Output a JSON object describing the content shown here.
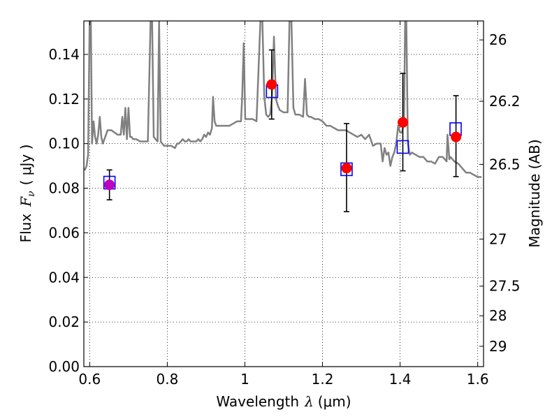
{
  "chart_data": {
    "type": "scatter",
    "xlabel": "Wavelength",
    "xlabel_symbol": "λ",
    "xlabel_unit": "(μm)",
    "ylabel": "Flux",
    "ylabel_symbol": "F",
    "ylabel_subscript": "ν",
    "ylabel_unit": "( μJy )",
    "y2label": "Magnitude (AB)",
    "xlim": [
      0.585,
      1.615
    ],
    "ylim": [
      0.0,
      0.155
    ],
    "grid": true,
    "x_ticks": [
      0.6,
      0.8,
      1.0,
      1.2,
      1.4,
      1.6
    ],
    "x_tick_labels": [
      "0.6",
      "0.8",
      "1",
      "1.2",
      "1.4",
      "1.6"
    ],
    "y_ticks": [
      0.0,
      0.02,
      0.04,
      0.06,
      0.08,
      0.1,
      0.12,
      0.14
    ],
    "y_tick_labels": [
      "0.00",
      "0.02",
      "0.04",
      "0.06",
      "0.08",
      "0.10",
      "0.12",
      "0.14"
    ],
    "y2_ticks": [
      {
        "label": "26",
        "flux": 0.1465
      },
      {
        "label": "26.2",
        "flux": 0.119
      },
      {
        "label": "26.5",
        "flux": 0.0907
      },
      {
        "label": "27",
        "flux": 0.0572
      },
      {
        "label": "27.5",
        "flux": 0.0361
      },
      {
        "label": "28",
        "flux": 0.0228
      },
      {
        "label": "29",
        "flux": 0.0091
      }
    ],
    "series": [
      {
        "marker": "line",
        "color": "#808080",
        "x": [
          0.587,
          0.592,
          0.596,
          0.6,
          0.603,
          0.606,
          0.61,
          0.614,
          0.618,
          0.622,
          0.626,
          0.63,
          0.634,
          0.638,
          0.642,
          0.646,
          0.65,
          0.656,
          0.664,
          0.672,
          0.68,
          0.684,
          0.688,
          0.692,
          0.696,
          0.7,
          0.704,
          0.708,
          0.712,
          0.72,
          0.73,
          0.74,
          0.75,
          0.757,
          0.761,
          0.765,
          0.77,
          0.775,
          0.779,
          0.783,
          0.787,
          0.792,
          0.8,
          0.81,
          0.82,
          0.825,
          0.83,
          0.835,
          0.84,
          0.845,
          0.85,
          0.855,
          0.86,
          0.865,
          0.87,
          0.875,
          0.88,
          0.885,
          0.89,
          0.895,
          0.9,
          0.905,
          0.91,
          0.915,
          0.918,
          0.922,
          0.926,
          0.93,
          0.94,
          0.95,
          0.96,
          0.97,
          0.98,
          0.99,
          0.993,
          0.997,
          1.001,
          1.01,
          1.02,
          1.03,
          1.04,
          1.045,
          1.05,
          1.055,
          1.06,
          1.065,
          1.07,
          1.075,
          1.08,
          1.085,
          1.09,
          1.1,
          1.11,
          1.115,
          1.12,
          1.125,
          1.13,
          1.14,
          1.15,
          1.155,
          1.16,
          1.165,
          1.17,
          1.18,
          1.19,
          1.2,
          1.21,
          1.22,
          1.23,
          1.24,
          1.25,
          1.26,
          1.27,
          1.28,
          1.29,
          1.3,
          1.31,
          1.32,
          1.33,
          1.34,
          1.35,
          1.355,
          1.36,
          1.365,
          1.37,
          1.375,
          1.38,
          1.385,
          1.39,
          1.395,
          1.4,
          1.405,
          1.41,
          1.413,
          1.416,
          1.42,
          1.425,
          1.43,
          1.44,
          1.45,
          1.46,
          1.47,
          1.48,
          1.49,
          1.5,
          1.51,
          1.52,
          1.522,
          1.527,
          1.53,
          1.54,
          1.55,
          1.56,
          1.57,
          1.58,
          1.59,
          1.6,
          1.61
        ],
        "y": [
          0.088,
          0.09,
          0.095,
          0.155,
          0.155,
          0.1,
          0.11,
          0.103,
          0.1,
          0.104,
          0.112,
          0.103,
          0.1,
          0.102,
          0.104,
          0.106,
          0.106,
          0.106,
          0.105,
          0.104,
          0.104,
          0.112,
          0.104,
          0.116,
          0.102,
          0.116,
          0.103,
          0.103,
          0.102,
          0.102,
          0.101,
          0.101,
          0.101,
          0.155,
          0.155,
          0.103,
          0.102,
          0.101,
          0.155,
          0.101,
          0.1,
          0.099,
          0.099,
          0.099,
          0.098,
          0.1,
          0.1,
          0.101,
          0.102,
          0.101,
          0.101,
          0.102,
          0.101,
          0.101,
          0.101,
          0.101,
          0.102,
          0.101,
          0.102,
          0.104,
          0.103,
          0.105,
          0.104,
          0.107,
          0.121,
          0.11,
          0.108,
          0.108,
          0.108,
          0.108,
          0.108,
          0.109,
          0.11,
          0.11,
          0.121,
          0.145,
          0.111,
          0.111,
          0.111,
          0.11,
          0.155,
          0.155,
          0.121,
          0.113,
          0.112,
          0.113,
          0.121,
          0.148,
          0.12,
          0.117,
          0.115,
          0.114,
          0.114,
          0.155,
          0.155,
          0.116,
          0.113,
          0.113,
          0.112,
          0.129,
          0.113,
          0.112,
          0.112,
          0.111,
          0.111,
          0.11,
          0.108,
          0.108,
          0.107,
          0.106,
          0.106,
          0.106,
          0.105,
          0.104,
          0.103,
          0.104,
          0.102,
          0.104,
          0.099,
          0.1,
          0.1,
          0.092,
          0.098,
          0.095,
          0.096,
          0.09,
          0.094,
          0.096,
          0.1,
          0.108,
          0.105,
          0.105,
          0.11,
          0.155,
          0.155,
          0.1,
          0.095,
          0.096,
          0.095,
          0.094,
          0.094,
          0.092,
          0.092,
          0.091,
          0.094,
          0.094,
          0.092,
          0.104,
          0.093,
          0.094,
          0.092,
          0.091,
          0.089,
          0.087,
          0.087,
          0.086,
          0.085,
          0.085
        ]
      },
      {
        "marker": "open-square",
        "color": "#0000ff",
        "x": [
          0.651,
          1.07,
          1.262,
          1.407,
          1.543
        ],
        "y": [
          0.0825,
          0.1235,
          0.0885,
          0.0985,
          0.1065
        ]
      },
      {
        "marker": "filled-circle",
        "x": [
          0.651,
          1.069,
          1.262,
          1.407,
          1.544
        ],
        "y": [
          0.0815,
          0.1265,
          0.089,
          0.1095,
          0.103
        ],
        "colors": [
          "#bf00bf",
          "#ff0000",
          "#ff0000",
          "#ff0000",
          "#ff0000"
        ],
        "yerr_low": [
          0.0748,
          0.111,
          0.0695,
          0.0878,
          0.0852
        ],
        "yerr_high": [
          0.0882,
          0.142,
          0.109,
          0.1315,
          0.1215
        ]
      }
    ]
  }
}
